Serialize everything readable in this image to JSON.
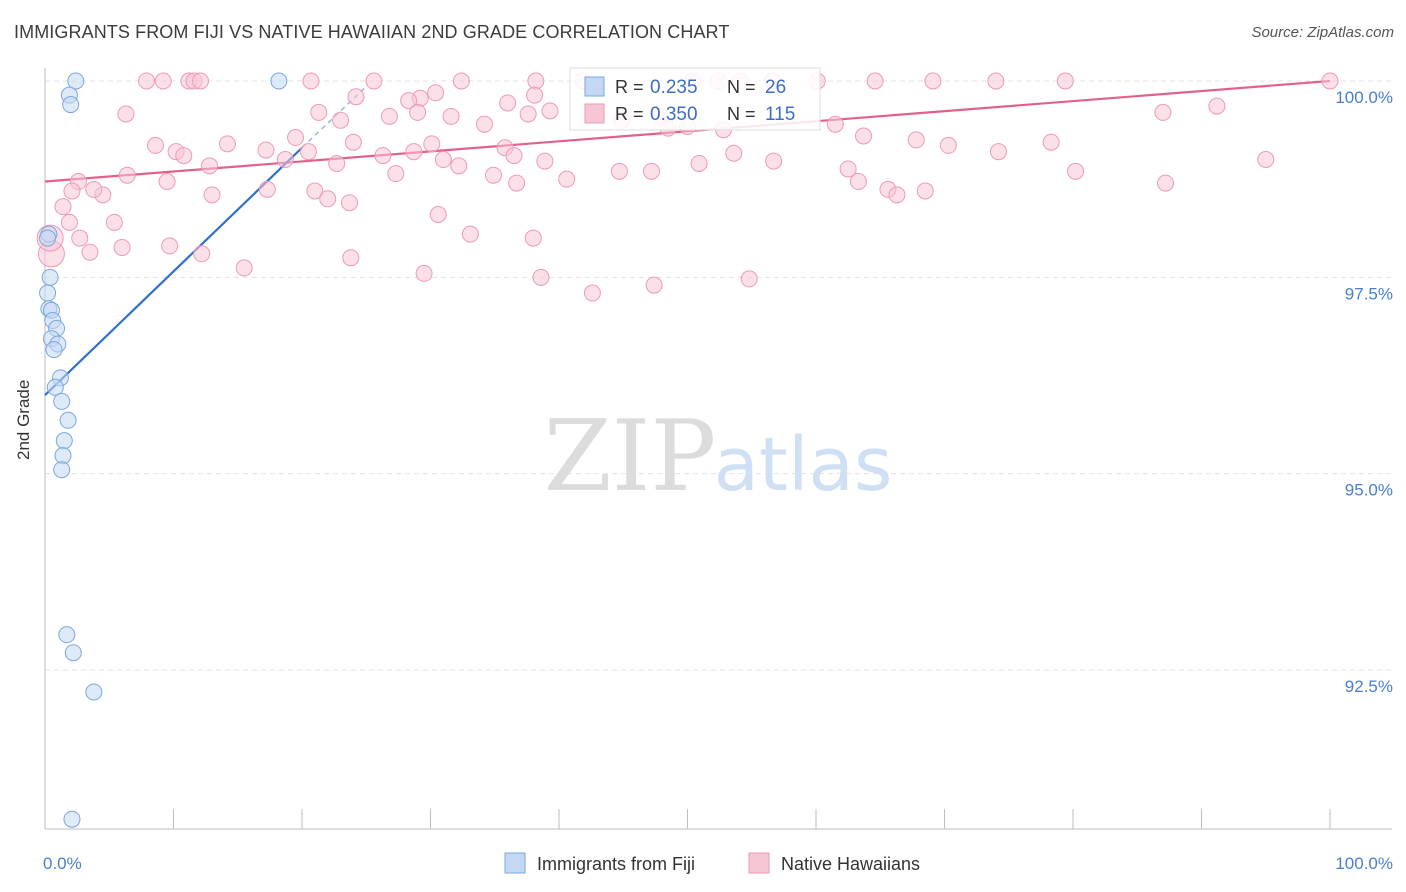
{
  "title": "IMMIGRANTS FROM FIJI VS NATIVE HAWAIIAN 2ND GRADE CORRELATION CHART",
  "source": "Source: ZipAtlas.com",
  "watermark": {
    "zip": "ZIP",
    "atlas": "atlas"
  },
  "chart_data": {
    "type": "scatter",
    "title": "IMMIGRANTS FROM FIJI VS NATIVE HAWAIIAN 2ND GRADE CORRELATION CHART",
    "xlabel": "",
    "ylabel": "2nd Grade",
    "xlim": [
      0,
      100
    ],
    "ylim": [
      90.5,
      100.35
    ],
    "x_tick_labels": [
      "0.0%",
      "100.0%"
    ],
    "y_ticks": [
      {
        "value": 100.0,
        "label": "100.0%"
      },
      {
        "value": 97.5,
        "label": "97.5%"
      },
      {
        "value": 95.0,
        "label": "95.0%"
      },
      {
        "value": 92.5,
        "label": "92.5%"
      }
    ],
    "legend_stats": [
      {
        "r_label": "R =",
        "r_value": "0.235",
        "n_label": "N =",
        "n_value": "26"
      },
      {
        "r_label": "R =",
        "r_value": "0.350",
        "n_label": "N =",
        "n_value": "115"
      }
    ],
    "series": [
      {
        "name": "Immigrants from Fiji",
        "color": "#7ba7e0",
        "fill": "#c5d8f3",
        "line_color": "#2f6fcf",
        "trend": {
          "x": [
            0.0,
            20.0
          ],
          "y": [
            96.0,
            99.15
          ]
        },
        "trend_dashed": {
          "x": [
            20.0,
            25.0
          ],
          "y": [
            99.15,
            99.93
          ]
        },
        "points": [
          [
            2.4,
            100.0
          ],
          [
            18.2,
            100.0
          ],
          [
            1.9,
            99.82
          ],
          [
            2.0,
            99.7
          ],
          [
            0.3,
            98.05
          ],
          [
            0.4,
            97.5
          ],
          [
            0.2,
            97.3
          ],
          [
            0.3,
            97.1
          ],
          [
            0.5,
            97.08
          ],
          [
            0.6,
            96.95
          ],
          [
            0.9,
            96.85
          ],
          [
            0.5,
            96.72
          ],
          [
            1.0,
            96.65
          ],
          [
            0.7,
            96.58
          ],
          [
            1.2,
            96.22
          ],
          [
            0.8,
            96.1
          ],
          [
            1.3,
            95.92
          ],
          [
            1.8,
            95.68
          ],
          [
            1.5,
            95.42
          ],
          [
            1.4,
            95.23
          ],
          [
            1.3,
            95.05
          ],
          [
            1.7,
            92.95
          ],
          [
            2.2,
            92.72
          ],
          [
            3.8,
            92.22
          ],
          [
            2.1,
            90.6
          ],
          [
            0.2,
            98.0
          ]
        ]
      },
      {
        "name": "Native Hawaiians",
        "color": "#ef9ab5",
        "fill": "#f7c6d5",
        "line_color": "#e0628c",
        "trend": {
          "x": [
            0.0,
            100.0
          ],
          "y": [
            98.72,
            100.0
          ]
        },
        "points": [
          [
            7.9,
            100.0
          ],
          [
            9.2,
            100.0
          ],
          [
            11.2,
            100.0
          ],
          [
            11.6,
            100.0
          ],
          [
            12.1,
            100.0
          ],
          [
            20.7,
            100.0
          ],
          [
            25.6,
            100.0
          ],
          [
            32.4,
            100.0
          ],
          [
            38.2,
            100.0
          ],
          [
            41.9,
            100.0
          ],
          [
            50.4,
            100.0
          ],
          [
            52.4,
            100.0
          ],
          [
            54.1,
            100.0
          ],
          [
            56.6,
            100.0
          ],
          [
            60.1,
            100.0
          ],
          [
            64.6,
            100.0
          ],
          [
            69.1,
            100.0
          ],
          [
            74.0,
            100.0
          ],
          [
            79.4,
            100.0
          ],
          [
            100.0,
            100.0
          ],
          [
            30.4,
            99.85
          ],
          [
            29.2,
            99.78
          ],
          [
            28.3,
            99.75
          ],
          [
            24.2,
            99.8
          ],
          [
            38.1,
            99.82
          ],
          [
            36.0,
            99.72
          ],
          [
            29.0,
            99.6
          ],
          [
            26.8,
            99.55
          ],
          [
            23.0,
            99.5
          ],
          [
            21.3,
            99.6
          ],
          [
            31.6,
            99.55
          ],
          [
            34.2,
            99.45
          ],
          [
            37.6,
            99.58
          ],
          [
            39.3,
            99.62
          ],
          [
            44.9,
            99.5
          ],
          [
            47.9,
            99.55
          ],
          [
            48.5,
            99.4
          ],
          [
            50.0,
            99.42
          ],
          [
            52.8,
            99.38
          ],
          [
            61.5,
            99.45
          ],
          [
            63.7,
            99.3
          ],
          [
            67.8,
            99.25
          ],
          [
            70.3,
            99.18
          ],
          [
            74.2,
            99.1
          ],
          [
            78.3,
            99.22
          ],
          [
            87.0,
            99.6
          ],
          [
            91.2,
            99.68
          ],
          [
            95.0,
            99.0
          ],
          [
            6.3,
            99.58
          ],
          [
            8.6,
            99.18
          ],
          [
            10.2,
            99.1
          ],
          [
            10.8,
            99.05
          ],
          [
            12.8,
            98.92
          ],
          [
            14.2,
            99.2
          ],
          [
            17.2,
            99.12
          ],
          [
            18.7,
            99.0
          ],
          [
            19.5,
            99.28
          ],
          [
            20.5,
            99.1
          ],
          [
            22.7,
            98.95
          ],
          [
            24.0,
            99.22
          ],
          [
            26.3,
            99.05
          ],
          [
            27.3,
            98.82
          ],
          [
            28.7,
            99.1
          ],
          [
            30.1,
            99.2
          ],
          [
            31.0,
            99.0
          ],
          [
            32.2,
            98.92
          ],
          [
            34.9,
            98.8
          ],
          [
            35.8,
            99.15
          ],
          [
            36.5,
            99.05
          ],
          [
            38.9,
            98.98
          ],
          [
            40.6,
            98.75
          ],
          [
            44.7,
            98.85
          ],
          [
            50.9,
            98.95
          ],
          [
            53.6,
            99.08
          ],
          [
            56.7,
            98.98
          ],
          [
            62.5,
            98.88
          ],
          [
            63.3,
            98.72
          ],
          [
            65.6,
            98.62
          ],
          [
            66.3,
            98.55
          ],
          [
            68.5,
            98.6
          ],
          [
            80.2,
            98.85
          ],
          [
            87.2,
            98.7
          ],
          [
            4.5,
            98.55
          ],
          [
            1.4,
            98.4
          ],
          [
            1.9,
            98.2
          ],
          [
            2.7,
            98.0
          ],
          [
            3.5,
            97.82
          ],
          [
            6.0,
            97.88
          ],
          [
            9.7,
            97.9
          ],
          [
            12.2,
            97.8
          ],
          [
            15.5,
            97.62
          ],
          [
            23.8,
            97.75
          ],
          [
            29.5,
            97.55
          ],
          [
            38.6,
            97.5
          ],
          [
            42.6,
            97.3
          ],
          [
            47.4,
            97.4
          ],
          [
            54.8,
            97.48
          ],
          [
            2.6,
            98.72
          ],
          [
            3.8,
            98.62
          ],
          [
            6.4,
            98.8
          ],
          [
            9.5,
            98.72
          ],
          [
            13.0,
            98.55
          ],
          [
            17.3,
            98.62
          ],
          [
            21.0,
            98.6
          ],
          [
            22.0,
            98.5
          ],
          [
            23.7,
            98.45
          ],
          [
            0.5,
            97.8
          ],
          [
            0.4,
            98.0
          ],
          [
            47.2,
            98.85
          ],
          [
            36.7,
            98.7
          ],
          [
            30.6,
            98.3
          ],
          [
            33.1,
            98.05
          ],
          [
            38.0,
            98.0
          ],
          [
            2.1,
            98.6
          ],
          [
            5.4,
            98.2
          ]
        ]
      }
    ]
  }
}
